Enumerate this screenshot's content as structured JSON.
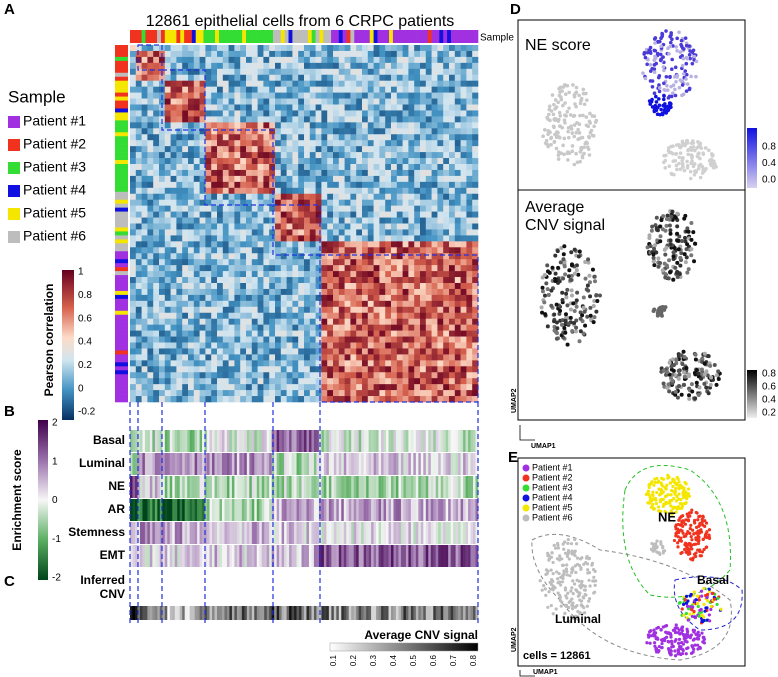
{
  "panel_a": {
    "label": "A",
    "title": "12861 epithelial cells from 6 CRPC patients",
    "sample_bar_label": "Sample",
    "legend_title": "Sample",
    "patients": [
      "Patient #1",
      "Patient #2",
      "Patient #3",
      "Patient #4",
      "Patient #5",
      "Patient #6"
    ],
    "colorbar_title": "Pearson correlation",
    "colorbar_ticks": [
      "1",
      "0.8",
      "0.6",
      "0.4",
      "0.2",
      "0",
      "-0.2"
    ]
  },
  "panel_b": {
    "label": "B",
    "rows": [
      "Basal",
      "Luminal",
      "NE",
      "AR",
      "Stemness",
      "EMT"
    ],
    "colorbar_title": "Enrichment score",
    "colorbar_ticks": [
      "2",
      "1",
      "0",
      "-1",
      "-2"
    ]
  },
  "panel_c": {
    "label": "C",
    "row_label_1": "Inferred",
    "row_label_2": "CNV",
    "colorbar_title": "Average CNV signal",
    "colorbar_ticks": [
      "0.1",
      "0.2",
      "0.3",
      "0.4",
      "0.5",
      "0.6",
      "0.7",
      "0.8"
    ]
  },
  "panel_d": {
    "label": "D",
    "top_title": "NE score",
    "top_ticks": [
      "0.8",
      "0.4",
      "0.0"
    ],
    "bottom_title_1": "Average",
    "bottom_title_2": "CNV signal",
    "bottom_ticks": [
      "0.8",
      "0.6",
      "0.4",
      "0.2"
    ],
    "x_axis": "UMAP1",
    "y_axis": "UMAP2"
  },
  "panel_e": {
    "label": "E",
    "legend": [
      "Patient #1",
      "Patient #2",
      "Patient #3",
      "Patient #4",
      "Patient #5",
      "Patient #6"
    ],
    "cluster_ne": "NE",
    "cluster_basal": "Basal",
    "cluster_luminal": "Luminal",
    "cell_count": "cells = 12861",
    "x_axis": "UMAP1",
    "y_axis": "UMAP2"
  }
}
